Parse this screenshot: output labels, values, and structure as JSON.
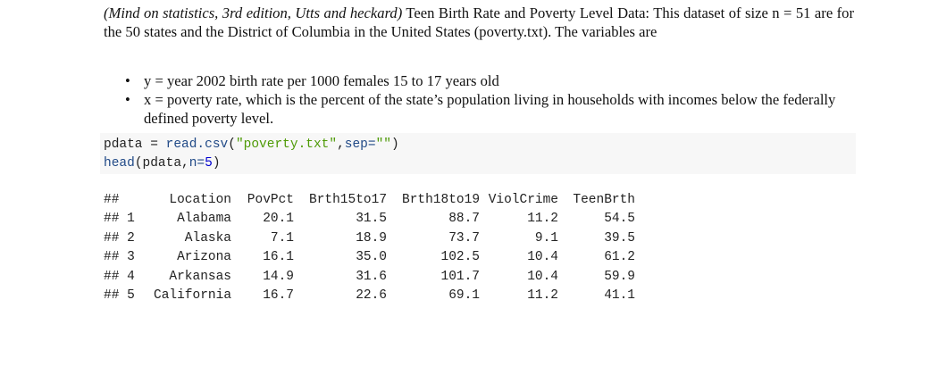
{
  "intro": {
    "citation": "(Mind on statistics, 3rd edition, Utts and heckard)",
    "text": " Teen Birth Rate and Poverty Level Data: This dataset of size n = 51 are for the 50 states and the District of Columbia in the United States (poverty.txt). The variables are"
  },
  "bullets": [
    "y = year 2002 birth rate per 1000 females 15 to 17 years old",
    "x = poverty rate, which is the percent of the state’s population living in households with incomes below the federally defined poverty level."
  ],
  "code": {
    "line1": {
      "var": "pdata",
      "op": " = ",
      "fn": "read.csv",
      "open": "(",
      "str1": "\"poverty.txt\"",
      "comma": ",",
      "arg": "sep=",
      "str2": "\"\"",
      "close": ")"
    },
    "line2": {
      "fn": "head",
      "open": "(",
      "var": "pdata,",
      "arg": "n=",
      "num": "5",
      "close": ")"
    }
  },
  "output": {
    "header_prefix": "##",
    "columns": [
      "Location",
      "PovPct",
      "Brth15to17",
      "Brth18to19",
      "ViolCrime",
      "TeenBrth"
    ],
    "rows": [
      {
        "prefix": "## 1",
        "cells": [
          "Alabama",
          "20.1",
          "31.5",
          "88.7",
          "11.2",
          "54.5"
        ]
      },
      {
        "prefix": "## 2",
        "cells": [
          "Alaska",
          "7.1",
          "18.9",
          "73.7",
          "9.1",
          "39.5"
        ]
      },
      {
        "prefix": "## 3",
        "cells": [
          "Arizona",
          "16.1",
          "35.0",
          "102.5",
          "10.4",
          "61.2"
        ]
      },
      {
        "prefix": "## 4",
        "cells": [
          "Arkansas",
          "14.9",
          "31.6",
          "101.7",
          "10.4",
          "59.9"
        ]
      },
      {
        "prefix": "## 5",
        "cells": [
          "California",
          "16.7",
          "22.6",
          "69.1",
          "11.2",
          "41.1"
        ]
      }
    ]
  }
}
